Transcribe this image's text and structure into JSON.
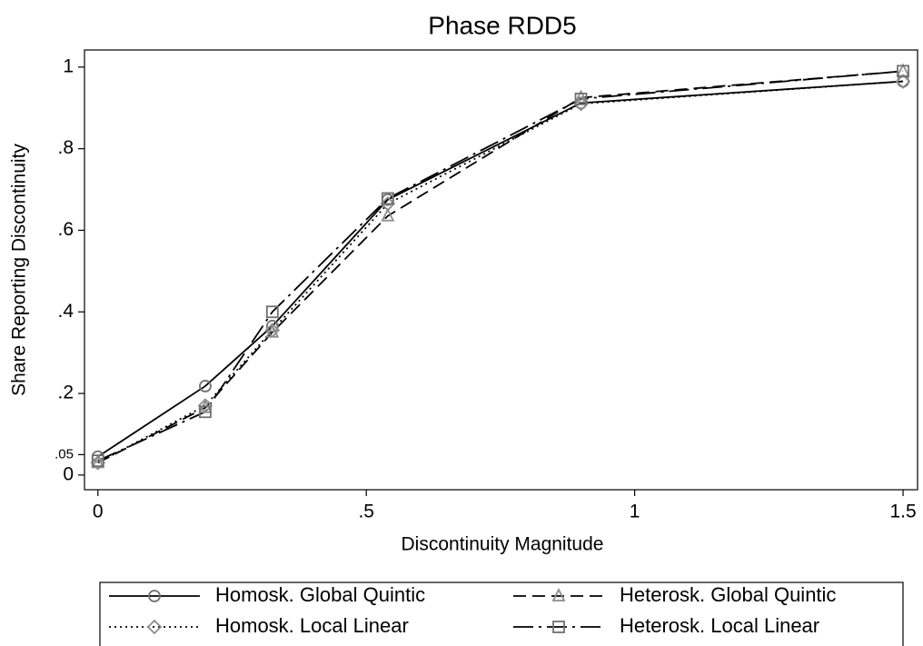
{
  "chart_data": {
    "type": "line",
    "title": "Phase RDD5",
    "xlabel": "Discontinuity Magnitude",
    "ylabel": "Share Reporting Discontinuity",
    "x": [
      0,
      0.2,
      0.325,
      0.54,
      0.9,
      1.5
    ],
    "series": [
      {
        "name": "Homosk. Global Quintic",
        "color": "#000000",
        "marker_color": "#707070",
        "dash": "solid",
        "marker": "circle",
        "values": [
          0.045,
          0.218,
          0.365,
          0.675,
          0.912,
          0.965
        ]
      },
      {
        "name": "Heterosk. Global Quintic",
        "color": "#000000",
        "marker_color": "#8c8c8c",
        "dash": "dashed",
        "marker": "triangle",
        "values": [
          0.03,
          0.165,
          0.35,
          0.635,
          0.925,
          0.99
        ]
      },
      {
        "name": "Homosk. Local Linear",
        "color": "#000000",
        "marker_color": "#8c8c8c",
        "dash": "dotted",
        "marker": "diamond",
        "values": [
          0.03,
          0.17,
          0.355,
          0.665,
          0.91,
          0.965
        ]
      },
      {
        "name": "Heterosk. Local Linear",
        "color": "#000000",
        "marker_color": "#707070",
        "dash": "dashdot",
        "marker": "square",
        "values": [
          0.035,
          0.155,
          0.4,
          0.678,
          0.922,
          0.99
        ]
      }
    ],
    "xlim": [
      -0.025,
      1.527
    ],
    "ylim": [
      -0.036,
      1.042
    ],
    "xticks": [
      0,
      {
        "value": 0.5,
        "label": ".5"
      },
      1,
      1.5
    ],
    "yticks": [
      0,
      {
        "value": 0.05,
        "label": ".05"
      },
      {
        "value": 0.2,
        "label": ".2"
      },
      {
        "value": 0.4,
        "label": ".4"
      },
      {
        "value": 0.6,
        "label": ".6"
      },
      {
        "value": 0.8,
        "label": ".8"
      },
      1
    ],
    "grid": false,
    "legend": "bottom"
  }
}
